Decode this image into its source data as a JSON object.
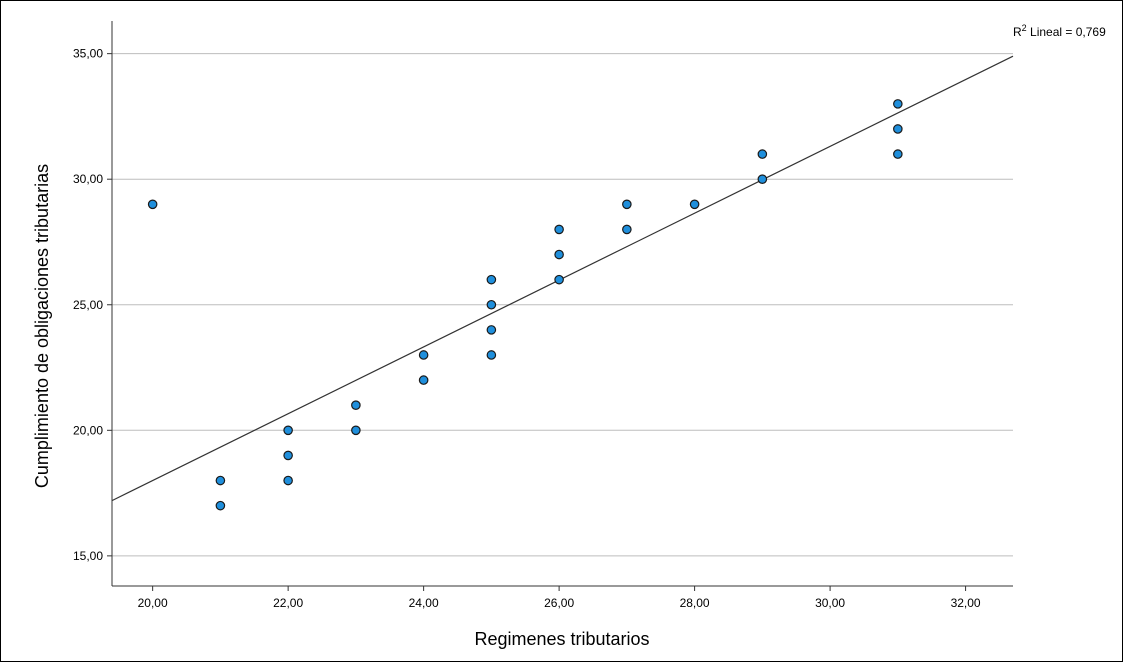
{
  "chart_data": {
    "type": "scatter",
    "xlabel": "Regimenes tributarios",
    "ylabel": "Cumplimiento de obligaciones tributarias",
    "x_ticks": [
      "20,00",
      "22,00",
      "24,00",
      "26,00",
      "28,00",
      "30,00",
      "32,00"
    ],
    "y_ticks": [
      "15,00",
      "20,00",
      "25,00",
      "30,00",
      "35,00"
    ],
    "xlim": [
      19.4,
      32.7
    ],
    "ylim": [
      13.8,
      36.3
    ],
    "grid": "horizontal",
    "points": [
      {
        "x": 20,
        "y": 29
      },
      {
        "x": 21,
        "y": 18
      },
      {
        "x": 21,
        "y": 17
      },
      {
        "x": 22,
        "y": 20
      },
      {
        "x": 22,
        "y": 19
      },
      {
        "x": 22,
        "y": 18
      },
      {
        "x": 23,
        "y": 21
      },
      {
        "x": 23,
        "y": 20
      },
      {
        "x": 24,
        "y": 23
      },
      {
        "x": 24,
        "y": 22
      },
      {
        "x": 25,
        "y": 26
      },
      {
        "x": 25,
        "y": 25
      },
      {
        "x": 25,
        "y": 24
      },
      {
        "x": 25,
        "y": 23
      },
      {
        "x": 26,
        "y": 28
      },
      {
        "x": 26,
        "y": 27
      },
      {
        "x": 26,
        "y": 26
      },
      {
        "x": 27,
        "y": 29
      },
      {
        "x": 27,
        "y": 28
      },
      {
        "x": 28,
        "y": 29
      },
      {
        "x": 29,
        "y": 31
      },
      {
        "x": 29,
        "y": 30
      },
      {
        "x": 31,
        "y": 33
      },
      {
        "x": 31,
        "y": 32
      },
      {
        "x": 31,
        "y": 31
      }
    ],
    "fit_line": {
      "type": "linear",
      "x": [
        19.4,
        32.7
      ],
      "y": [
        17.2,
        34.9
      ],
      "label_prefix": "R",
      "label_sup": "2",
      "label_rest": " Lineal = 0,769"
    },
    "colors": {
      "point_fill": "#1f8fdc",
      "point_stroke": "#1a1a1a",
      "grid": "#bdbdbd",
      "fit_line": "#333333",
      "axis": "#333333"
    }
  }
}
